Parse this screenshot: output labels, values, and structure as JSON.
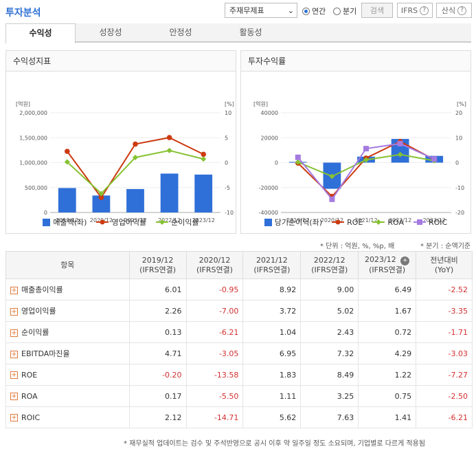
{
  "header": {
    "title": "투자분석",
    "select_value": "주재무제표",
    "radio_annual": "연간",
    "radio_quarter": "분기",
    "search_label": "검색",
    "ifrs_label": "IFRS",
    "formula_label": "산식"
  },
  "tabs": [
    "수익성",
    "성장성",
    "안정성",
    "활동성"
  ],
  "left_panel": {
    "title": "수익성지표",
    "left_unit": "[억원]",
    "right_unit": "[%]",
    "legend": [
      "매출액(좌)",
      "영업이익률",
      "순이익률"
    ]
  },
  "right_panel": {
    "title": "투자수익률",
    "left_unit": "[억원]",
    "right_unit": "[%]",
    "legend": [
      "당기순이익(좌)",
      "ROE",
      "ROA",
      "ROIC"
    ]
  },
  "colors": {
    "bar": "#2f6fd8",
    "line1": "#cc3a10",
    "line2": "#86c232",
    "line3": "#a57be0",
    "negative": "#d32f2f",
    "accent": "#2b6fd4"
  },
  "chart_data": [
    {
      "type": "bar",
      "categories": [
        "2019/12",
        "2020/12",
        "2021/12",
        "2022/12",
        "2023/12"
      ],
      "y_ticks": [
        "2,000,000",
        "1,500,000",
        "1,000,000",
        "500,000",
        "0"
      ],
      "y2_ticks": [
        "10",
        "5",
        "0",
        "-5",
        "-10"
      ],
      "ylim": [
        0,
        2000000
      ],
      "y2lim": [
        -10,
        10
      ],
      "series": [
        {
          "name": "매출액(좌)",
          "type": "bar",
          "axis": "left",
          "values": [
            490000,
            340000,
            470000,
            780000,
            760000
          ]
        },
        {
          "name": "영업이익률",
          "type": "line",
          "axis": "right",
          "values": [
            2.26,
            -7.0,
            3.72,
            5.02,
            1.67
          ]
        },
        {
          "name": "순이익률",
          "type": "line",
          "axis": "right",
          "values": [
            0.13,
            -6.21,
            1.04,
            2.43,
            0.72
          ]
        }
      ]
    },
    {
      "type": "bar",
      "categories": [
        "2019/12",
        "2020/12",
        "2021/12",
        "2022/12",
        "2023/12"
      ],
      "y_ticks": [
        "40000",
        "20000",
        "0",
        "-20000",
        "-40000"
      ],
      "y2_ticks": [
        "20",
        "10",
        "0",
        "-10",
        "-20"
      ],
      "ylim": [
        -40000,
        40000
      ],
      "y2lim": [
        -20,
        20
      ],
      "series": [
        {
          "name": "당기순이익(좌)",
          "type": "bar",
          "axis": "left",
          "values": [
            600,
            -21000,
            4800,
            19000,
            5400
          ]
        },
        {
          "name": "ROE",
          "type": "line",
          "axis": "right",
          "values": [
            -0.2,
            -13.58,
            1.83,
            8.49,
            1.22
          ]
        },
        {
          "name": "ROA",
          "type": "line",
          "axis": "right",
          "values": [
            0.17,
            -5.5,
            1.11,
            3.25,
            0.75
          ]
        },
        {
          "name": "ROIC",
          "type": "line",
          "axis": "right",
          "values": [
            2.12,
            -14.71,
            5.62,
            7.63,
            1.41
          ]
        }
      ]
    }
  ],
  "notes": {
    "unit": "* 단위 : 억원, %, %p, 배",
    "quarter": "* 분기 : 순액기준"
  },
  "table": {
    "header_item": "항목",
    "columns": [
      {
        "year": "2019/12",
        "sub": "(IFRS연결)"
      },
      {
        "year": "2020/12",
        "sub": "(IFRS연결)"
      },
      {
        "year": "2021/12",
        "sub": "(IFRS연결)"
      },
      {
        "year": "2022/12",
        "sub": "(IFRS연결)"
      },
      {
        "year": "2023/12",
        "sub": "(IFRS연결)"
      },
      {
        "year": "전년대비",
        "sub": "(YoY)"
      }
    ],
    "rows": [
      {
        "label": "매출총이익률",
        "values": [
          "6.01",
          "-0.95",
          "8.92",
          "9.00",
          "6.49",
          "-2.52"
        ]
      },
      {
        "label": "영업이익률",
        "values": [
          "2.26",
          "-7.00",
          "3.72",
          "5.02",
          "1.67",
          "-3.35"
        ]
      },
      {
        "label": "순이익률",
        "values": [
          "0.13",
          "-6.21",
          "1.04",
          "2.43",
          "0.72",
          "-1.71"
        ]
      },
      {
        "label": "EBITDA마진율",
        "values": [
          "4.71",
          "-3.05",
          "6.95",
          "7.32",
          "4.29",
          "-3.03"
        ]
      },
      {
        "label": "ROE",
        "values": [
          "-0.20",
          "-13.58",
          "1.83",
          "8.49",
          "1.22",
          "-7.27"
        ]
      },
      {
        "label": "ROA",
        "values": [
          "0.17",
          "-5.50",
          "1.11",
          "3.25",
          "0.75",
          "-2.50"
        ]
      },
      {
        "label": "ROIC",
        "values": [
          "2.12",
          "-14.71",
          "5.62",
          "7.63",
          "1.41",
          "-6.21"
        ]
      }
    ]
  },
  "footer": "* 재무실적 업데이트는 검수 및 주석반영으로 공시 이후 약 일주일 정도 소요되며, 기업별로 다르게 적용됨"
}
